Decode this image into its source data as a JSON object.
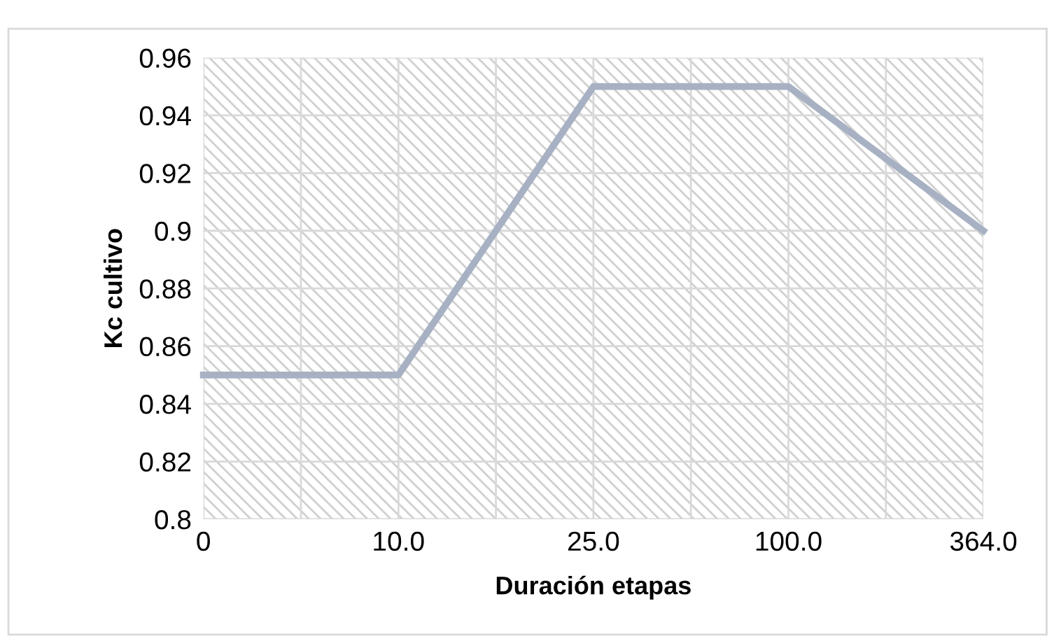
{
  "chart_data": {
    "type": "line",
    "xlabel": "Duración etapas",
    "ylabel": "Kc cultivo",
    "categories": [
      "0",
      "10.0",
      "25.0",
      "100.0",
      "364.0"
    ],
    "series": [
      {
        "color": "#a7b1c3",
        "values": [
          0.85,
          0.85,
          0.95,
          0.95,
          0.9
        ]
      }
    ],
    "ylim": [
      0.8,
      0.96
    ],
    "yticks": [
      0.8,
      0.82,
      0.84,
      0.86,
      0.88,
      0.9,
      0.92,
      0.94,
      0.96
    ],
    "grid": true,
    "marker": "none",
    "line_style": "solid"
  }
}
